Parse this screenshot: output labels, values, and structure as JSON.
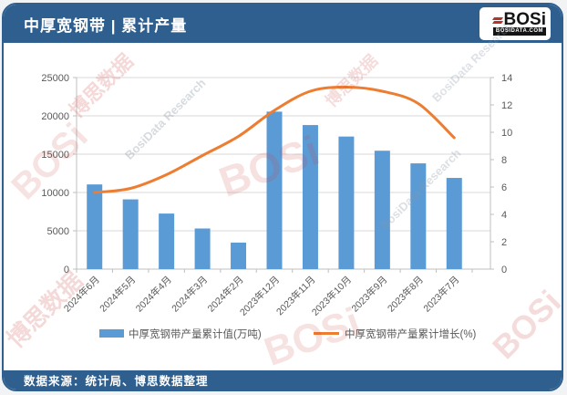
{
  "header": {
    "title": "中厚宽钢带 | 累计产量"
  },
  "logo": {
    "name": "BOSi",
    "domain": "BOSIDATA.COM"
  },
  "footer": {
    "source": "数据来源：统计局、博思数据整理"
  },
  "watermark": {
    "brand": "BOSi",
    "brand_cn": "博思数据",
    "brand_en": "BosiData Research"
  },
  "colors": {
    "header_bg": "#2e5f8f",
    "bar": "#5b9bd5",
    "line": "#ed7d31",
    "grid": "#d9d9d9",
    "axis_line": "#bfbfbf",
    "axis_text": "#595959",
    "logo_red": "#b5342c"
  },
  "chart_data": {
    "type": "bar+line",
    "title": "中厚宽钢带 | 累计产量",
    "categories": [
      "2024年6月",
      "2024年5月",
      "2024年4月",
      "2024年3月",
      "2024年2月",
      "2023年12月",
      "2023年11月",
      "2023年10月",
      "2023年9月",
      "2023年8月",
      "2023年7月"
    ],
    "series": [
      {
        "name": "中厚宽钢带产量累计值(万吨)",
        "type": "bar",
        "axis": "left",
        "color": "#5b9bd5",
        "values": [
          11050,
          9100,
          7250,
          5300,
          3460,
          20550,
          18800,
          17300,
          15450,
          13800,
          11900
        ]
      },
      {
        "name": "中厚宽钢带产量累计增长(%)",
        "type": "line",
        "axis": "right",
        "color": "#ed7d31",
        "values": [
          5.6,
          5.9,
          6.9,
          8.3,
          9.7,
          11.6,
          13.0,
          13.3,
          13.0,
          12.1,
          9.6
        ]
      }
    ],
    "left_axis": {
      "min": 0,
      "max": 25000,
      "step": 5000,
      "tick_labels": [
        "0",
        "5000",
        "10000",
        "15000",
        "20000",
        "25000"
      ]
    },
    "right_axis": {
      "min": 0,
      "max": 14,
      "step": 2,
      "tick_labels": [
        "0",
        "2",
        "4",
        "6",
        "8",
        "10",
        "12",
        "14"
      ]
    },
    "grid": true,
    "legend_position": "bottom"
  }
}
